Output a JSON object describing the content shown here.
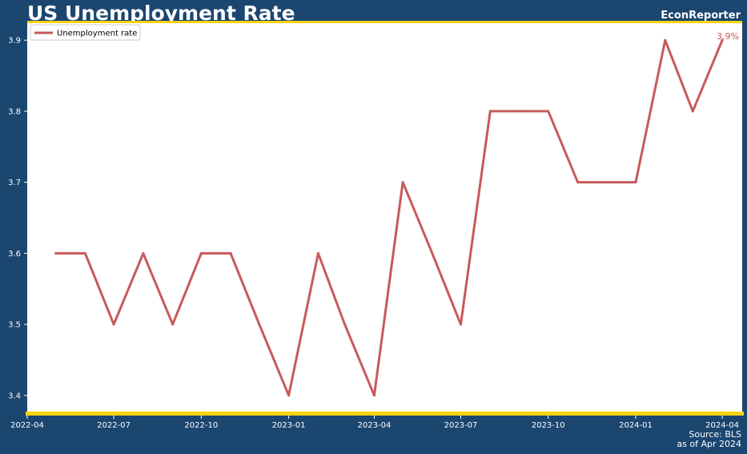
{
  "header": {
    "title": "US Unemployment Rate",
    "brand": "EconReporter"
  },
  "footer": {
    "source": "Source: BLS",
    "as_of": "as of Apr 2024"
  },
  "colors": {
    "background": "#1b4670",
    "plot_background": "#ffffff",
    "accent_border": "#f5d312",
    "series": "#c85a5a"
  },
  "chart_data": {
    "type": "line",
    "xlabel": "",
    "ylabel": "",
    "x": [
      "2022-05",
      "2022-06",
      "2022-07",
      "2022-08",
      "2022-09",
      "2022-10",
      "2022-11",
      "2022-12",
      "2023-01",
      "2023-02",
      "2023-03",
      "2023-04",
      "2023-05",
      "2023-06",
      "2023-07",
      "2023-08",
      "2023-09",
      "2023-10",
      "2023-11",
      "2023-12",
      "2024-01",
      "2024-02",
      "2024-03",
      "2024-04"
    ],
    "series": [
      {
        "name": "Unemployment rate",
        "values": [
          3.6,
          3.6,
          3.5,
          3.6,
          3.5,
          3.6,
          3.6,
          3.5,
          3.4,
          3.6,
          3.5,
          3.4,
          3.7,
          3.6,
          3.5,
          3.8,
          3.8,
          3.8,
          3.7,
          3.7,
          3.7,
          3.9,
          3.8,
          3.9
        ]
      }
    ],
    "xlim": [
      "2022-04-01",
      "2024-04-22"
    ],
    "ylim": [
      3.375,
      3.925
    ],
    "x_ticks": [
      "2022-04",
      "2022-07",
      "2022-10",
      "2023-01",
      "2023-04",
      "2023-07",
      "2023-10",
      "2024-01",
      "2024-04"
    ],
    "y_ticks": [
      3.4,
      3.5,
      3.6,
      3.7,
      3.8,
      3.9
    ],
    "y_tick_labels": [
      "3.4",
      "3.5",
      "3.6",
      "3.7",
      "3.8",
      "3.9"
    ],
    "end_label": "3.9%",
    "legend_position": "top-left",
    "grid": false
  }
}
